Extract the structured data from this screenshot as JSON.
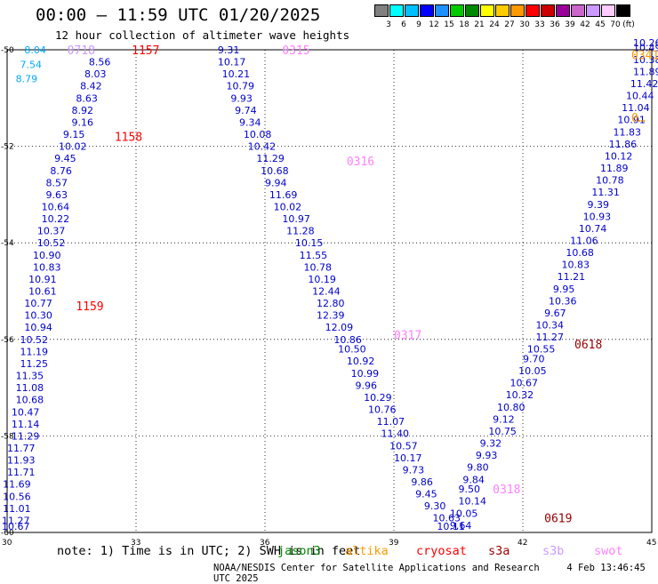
{
  "title": "00:00 – 11:59 UTC 01/20/2025",
  "subtitle": "12 hour collection of altimeter wave heights",
  "colorbar": {
    "unit": "(ft)",
    "colors": [
      "#808080",
      "#00ffff",
      "#00bfff",
      "#0000ff",
      "#1e90ff",
      "#00cc00",
      "#008800",
      "#ffff00",
      "#ffcc00",
      "#ff9900",
      "#ff0000",
      "#cc0000",
      "#990099",
      "#cc66cc",
      "#cc99ff",
      "#ffccff",
      "#000000"
    ],
    "labels": [
      "3",
      "6",
      "9",
      "12",
      "15",
      "18",
      "21",
      "24",
      "27",
      "30",
      "33",
      "36",
      "39",
      "42",
      "45",
      "70"
    ]
  },
  "note": "note: 1) Time is in UTC; 2) SWH is in feet",
  "legend": [
    {
      "label": "jason3",
      "color": "#008800"
    },
    {
      "label": "altika",
      "color": "#ff9900"
    },
    {
      "label": "cryosat",
      "color": "#ff0000"
    },
    {
      "label": "s3a",
      "color": "#990000"
    },
    {
      "label": "s3b",
      "color": "#cc99ff"
    },
    {
      "label": "swot",
      "color": "#ff80ff"
    }
  ],
  "footer": {
    "credit": "NOAA/NESDIS Center for Satellite Applications and Research",
    "timestamp": "4 Feb 13:46:45 UTC 2025"
  },
  "chart_data": {
    "type": "scatter",
    "xlim": [
      30,
      45
    ],
    "ylim": [
      -60,
      -50
    ],
    "x_ticks": [
      30,
      33,
      36,
      39,
      42,
      45
    ],
    "y_ticks": [
      -50,
      -52,
      -54,
      -56,
      -58,
      -60
    ],
    "grid": true,
    "time_labels": [
      {
        "text": "1157",
        "x": 32.9,
        "y": -50.0,
        "color": "#ff0000"
      },
      {
        "text": "1158",
        "x": 32.5,
        "y": -51.8,
        "color": "#ff0000"
      },
      {
        "text": "1159",
        "x": 31.6,
        "y": -55.3,
        "color": "#ff0000"
      },
      {
        "text": "0315",
        "x": 36.4,
        "y": -50.0,
        "color": "#ff80ff"
      },
      {
        "text": "0316",
        "x": 37.9,
        "y": -52.3,
        "color": "#ff80ff"
      },
      {
        "text": "0317",
        "x": 39.0,
        "y": -55.9,
        "color": "#ff80ff"
      },
      {
        "text": "0318",
        "x": 41.3,
        "y": -59.1,
        "color": "#ff80ff"
      },
      {
        "text": "0619",
        "x": 42.5,
        "y": -59.7,
        "color": "#990000"
      },
      {
        "text": "0618",
        "x": 43.2,
        "y": -56.1,
        "color": "#990000"
      },
      {
        "text": "0341",
        "x": 44.7,
        "y": -50.1,
        "color": "#ff9900"
      },
      {
        "text": "0718",
        "x": 31.4,
        "y": -50.0,
        "color": "#cc99ff"
      },
      {
        "text": "0…",
        "x": 44.9,
        "y": -51.4,
        "color": "#ff9900"
      }
    ],
    "series": [
      {
        "name": "swot",
        "color": "#0000cc",
        "points": [
          {
            "x": 34.9,
            "y": -50.0,
            "v": "9.31"
          },
          {
            "x": 34.9,
            "y": -50.25,
            "v": "10.17"
          },
          {
            "x": 35.0,
            "y": -50.5,
            "v": "10.21"
          },
          {
            "x": 35.1,
            "y": -50.75,
            "v": "10.79"
          },
          {
            "x": 35.2,
            "y": -51.0,
            "v": "9.93"
          },
          {
            "x": 35.3,
            "y": -51.25,
            "v": "9.74"
          },
          {
            "x": 35.4,
            "y": -51.5,
            "v": "9.34"
          },
          {
            "x": 35.5,
            "y": -51.75,
            "v": "10.08"
          },
          {
            "x": 35.6,
            "y": -52.0,
            "v": "10.42"
          },
          {
            "x": 35.8,
            "y": -52.25,
            "v": "11.29"
          },
          {
            "x": 35.9,
            "y": -52.5,
            "v": "10.68"
          },
          {
            "x": 36.0,
            "y": -52.75,
            "v": "9.94"
          },
          {
            "x": 36.1,
            "y": -53.0,
            "v": "11.69"
          },
          {
            "x": 36.2,
            "y": -53.25,
            "v": "10.02"
          },
          {
            "x": 36.4,
            "y": -53.5,
            "v": "10.97"
          },
          {
            "x": 36.5,
            "y": -53.75,
            "v": "11.28"
          },
          {
            "x": 36.7,
            "y": -54.0,
            "v": "10.15"
          },
          {
            "x": 36.8,
            "y": -54.25,
            "v": "11.55"
          },
          {
            "x": 36.9,
            "y": -54.5,
            "v": "10.78"
          },
          {
            "x": 37.0,
            "y": -54.75,
            "v": "10.19"
          },
          {
            "x": 37.1,
            "y": -55.0,
            "v": "12.44"
          },
          {
            "x": 37.2,
            "y": -55.25,
            "v": "12.80"
          },
          {
            "x": 37.2,
            "y": -55.5,
            "v": "12.39"
          },
          {
            "x": 37.4,
            "y": -55.75,
            "v": "12.09"
          },
          {
            "x": 37.6,
            "y": -56.0,
            "v": "10.86"
          },
          {
            "x": 37.7,
            "y": -56.2,
            "v": "10.50"
          },
          {
            "x": 37.9,
            "y": -56.45,
            "v": "10.92"
          },
          {
            "x": 38.0,
            "y": -56.7,
            "v": "10.99"
          },
          {
            "x": 38.1,
            "y": -56.95,
            "v": "9.96"
          },
          {
            "x": 38.3,
            "y": -57.2,
            "v": "10.29"
          },
          {
            "x": 38.4,
            "y": -57.45,
            "v": "10.76"
          },
          {
            "x": 38.6,
            "y": -57.7,
            "v": "11.07"
          },
          {
            "x": 38.7,
            "y": -57.95,
            "v": "11.40"
          },
          {
            "x": 38.9,
            "y": -58.2,
            "v": "10.57"
          },
          {
            "x": 39.0,
            "y": -58.45,
            "v": "10.17"
          },
          {
            "x": 39.2,
            "y": -58.7,
            "v": "9.73"
          },
          {
            "x": 39.4,
            "y": -58.95,
            "v": "9.86"
          },
          {
            "x": 39.5,
            "y": -59.2,
            "v": "9.45"
          },
          {
            "x": 39.7,
            "y": -59.45,
            "v": "9.30"
          },
          {
            "x": 39.9,
            "y": -59.7,
            "v": "10.63"
          },
          {
            "x": 40.0,
            "y": -59.95,
            "v": "10.11"
          }
        ]
      },
      {
        "name": "swot-ascending",
        "color": "#0000cc",
        "points": [
          {
            "x": 40.5,
            "y": -59.1,
            "v": "9.50"
          },
          {
            "x": 40.5,
            "y": -59.35,
            "v": "10.14"
          },
          {
            "x": 40.3,
            "y": -59.6,
            "v": "10.05"
          },
          {
            "x": 40.3,
            "y": -59.85,
            "v": "9.64"
          },
          {
            "x": 40.6,
            "y": -58.9,
            "v": "9.84"
          },
          {
            "x": 40.7,
            "y": -58.65,
            "v": "9.80"
          },
          {
            "x": 40.9,
            "y": -58.4,
            "v": "9.93"
          },
          {
            "x": 41.0,
            "y": -58.15,
            "v": "9.32"
          },
          {
            "x": 41.2,
            "y": -57.9,
            "v": "10.75"
          },
          {
            "x": 41.3,
            "y": -57.65,
            "v": "9.12"
          },
          {
            "x": 41.4,
            "y": -57.4,
            "v": "10.80"
          },
          {
            "x": 41.6,
            "y": -57.15,
            "v": "10.32"
          },
          {
            "x": 41.7,
            "y": -56.9,
            "v": "10.67"
          },
          {
            "x": 41.9,
            "y": -56.65,
            "v": "10.05"
          },
          {
            "x": 42.0,
            "y": -56.4,
            "v": "9.70"
          },
          {
            "x": 42.1,
            "y": -56.2,
            "v": "10.55"
          },
          {
            "x": 42.3,
            "y": -55.95,
            "v": "11.27"
          },
          {
            "x": 42.3,
            "y": -55.7,
            "v": "10.34"
          },
          {
            "x": 42.5,
            "y": -55.45,
            "v": "9.67"
          },
          {
            "x": 42.6,
            "y": -55.2,
            "v": "10.36"
          },
          {
            "x": 42.7,
            "y": -54.95,
            "v": "9.95"
          },
          {
            "x": 42.8,
            "y": -54.7,
            "v": "11.21"
          },
          {
            "x": 42.9,
            "y": -54.45,
            "v": "10.83"
          },
          {
            "x": 43.0,
            "y": -54.2,
            "v": "10.68"
          },
          {
            "x": 43.1,
            "y": -53.95,
            "v": "11.06"
          },
          {
            "x": 43.3,
            "y": -53.7,
            "v": "10.74"
          },
          {
            "x": 43.4,
            "y": -53.45,
            "v": "10.93"
          },
          {
            "x": 43.5,
            "y": -53.2,
            "v": "9.39"
          },
          {
            "x": 43.6,
            "y": -52.95,
            "v": "11.31"
          },
          {
            "x": 43.7,
            "y": -52.7,
            "v": "10.78"
          },
          {
            "x": 43.8,
            "y": -52.45,
            "v": "11.89"
          },
          {
            "x": 43.9,
            "y": -52.2,
            "v": "10.12"
          },
          {
            "x": 44.0,
            "y": -51.95,
            "v": "11.86"
          },
          {
            "x": 44.1,
            "y": -51.7,
            "v": "11.83"
          },
          {
            "x": 44.2,
            "y": -51.45,
            "v": "10.91"
          },
          {
            "x": 44.3,
            "y": -51.2,
            "v": "11.04"
          },
          {
            "x": 44.4,
            "y": -50.95,
            "v": "10.44"
          },
          {
            "x": 44.5,
            "y": -50.7,
            "v": "11.42"
          },
          {
            "x": 44.6,
            "y": -50.45,
            "v": "11.89"
          },
          {
            "x": 44.7,
            "y": -50.2,
            "v": "10.38"
          },
          {
            "x": 44.8,
            "y": -49.95,
            "v": "10.49"
          },
          {
            "x": 44.9,
            "y": -49.7,
            "v": "10.26"
          }
        ]
      },
      {
        "name": "track-west",
        "color": "#0000cc",
        "points": [
          {
            "x": 31.9,
            "y": -50.25,
            "v": "8.56"
          },
          {
            "x": 31.8,
            "y": -50.5,
            "v": "8.03"
          },
          {
            "x": 31.7,
            "y": -50.75,
            "v": "8.42"
          },
          {
            "x": 31.6,
            "y": -51.0,
            "v": "8.63"
          },
          {
            "x": 31.5,
            "y": -51.25,
            "v": "8.92"
          },
          {
            "x": 31.5,
            "y": -51.5,
            "v": "9.16"
          },
          {
            "x": 31.3,
            "y": -51.75,
            "v": "9.15"
          },
          {
            "x": 31.2,
            "y": -52.0,
            "v": "10.02"
          },
          {
            "x": 31.1,
            "y": -52.25,
            "v": "9.45"
          },
          {
            "x": 31.0,
            "y": -52.5,
            "v": "8.76"
          },
          {
            "x": 30.9,
            "y": -52.75,
            "v": "8.57"
          },
          {
            "x": 30.9,
            "y": -53.0,
            "v": "9.63"
          },
          {
            "x": 30.8,
            "y": -53.25,
            "v": "10.64"
          },
          {
            "x": 30.8,
            "y": -53.5,
            "v": "10.22"
          },
          {
            "x": 30.7,
            "y": -53.75,
            "v": "10.37"
          },
          {
            "x": 30.7,
            "y": -54.0,
            "v": "10.52"
          },
          {
            "x": 30.6,
            "y": -54.25,
            "v": "10.90"
          },
          {
            "x": 30.6,
            "y": -54.5,
            "v": "10.83"
          },
          {
            "x": 30.5,
            "y": -54.75,
            "v": "10.91"
          },
          {
            "x": 30.5,
            "y": -55.0,
            "v": "10.61"
          },
          {
            "x": 30.4,
            "y": -55.25,
            "v": "10.77"
          },
          {
            "x": 30.4,
            "y": -55.5,
            "v": "10.30"
          },
          {
            "x": 30.4,
            "y": -55.75,
            "v": "10.94"
          },
          {
            "x": 30.3,
            "y": -56.0,
            "v": "10.52"
          },
          {
            "x": 30.3,
            "y": -56.25,
            "v": "11.19"
          },
          {
            "x": 30.3,
            "y": -56.5,
            "v": "11.25"
          },
          {
            "x": 30.2,
            "y": -56.75,
            "v": "11.35"
          },
          {
            "x": 30.2,
            "y": -57.0,
            "v": "11.08"
          },
          {
            "x": 30.2,
            "y": -57.25,
            "v": "10.68"
          },
          {
            "x": 30.1,
            "y": -57.5,
            "v": "10.47"
          },
          {
            "x": 30.1,
            "y": -57.75,
            "v": "11.14"
          },
          {
            "x": 30.1,
            "y": -58.0,
            "v": "11.29"
          },
          {
            "x": 30.0,
            "y": -58.25,
            "v": "11.77"
          },
          {
            "x": 30.0,
            "y": -58.5,
            "v": "11.93"
          },
          {
            "x": 30.0,
            "y": -58.75,
            "v": "11.71"
          },
          {
            "x": 29.9,
            "y": -59.0,
            "v": "11.69"
          },
          {
            "x": 29.9,
            "y": -59.25,
            "v": "10.56"
          },
          {
            "x": 29.9,
            "y": -59.5,
            "v": "11.01"
          },
          {
            "x": 29.8,
            "y": -59.75,
            "v": "11.27"
          },
          {
            "x": 29.8,
            "y": -60.0,
            "v": "10.67"
          }
        ]
      },
      {
        "name": "track-west-cyan",
        "color": "#00aaff",
        "points": [
          {
            "x": 30.4,
            "y": -50.0,
            "v": "8.04"
          },
          {
            "x": 30.3,
            "y": -50.3,
            "v": "7.54"
          },
          {
            "x": 30.2,
            "y": -50.6,
            "v": "8.79"
          }
        ]
      }
    ]
  }
}
